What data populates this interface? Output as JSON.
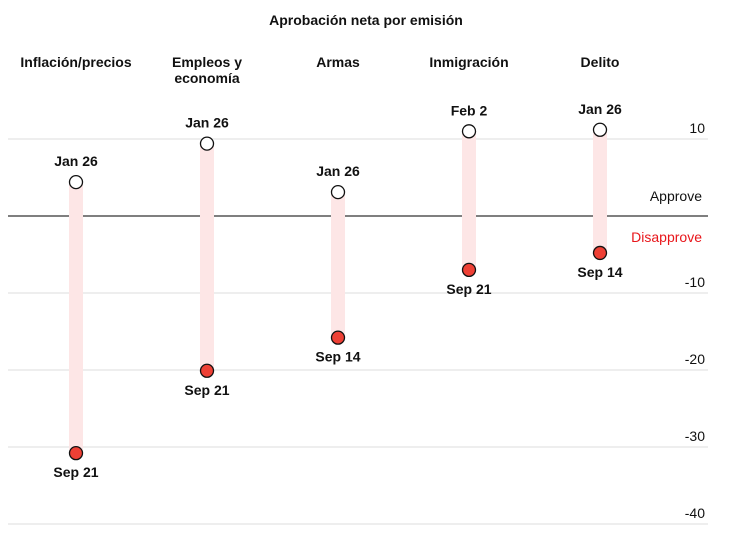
{
  "chart_data": {
    "type": "dumbbell",
    "title": "Aprobación neta por emisión",
    "ylim": [
      -40,
      10
    ],
    "yticks": [
      10,
      -10,
      -20,
      -30,
      -40
    ],
    "zero_labels": {
      "above": "Approve",
      "below": "Disapprove"
    },
    "colors": {
      "start": "#ffffff",
      "end": "#ee4035",
      "bar": "#fde6e6",
      "disapprove_text": "#e8161b"
    },
    "categories": [
      {
        "name": "Inflación/precios",
        "name_lines": [
          "Inflación/precios"
        ],
        "start_label": "Jan 26",
        "start": 4.4,
        "end_label": "Sep 21",
        "end": -30.8
      },
      {
        "name": "Empleos y economía",
        "name_lines": [
          "Empleos y",
          "economía"
        ],
        "start_label": "Jan 26",
        "start": 9.4,
        "end_label": "Sep 21",
        "end": -20.1
      },
      {
        "name": "Armas",
        "name_lines": [
          "Armas"
        ],
        "start_label": "Jan 26",
        "start": 3.1,
        "end_label": "Sep 14",
        "end": -15.8
      },
      {
        "name": "Inmigración",
        "name_lines": [
          "Inmigración"
        ],
        "start_label": "Feb 2",
        "start": 11.0,
        "end_label": "Sep 21",
        "end": -7.0
      },
      {
        "name": "Delito",
        "name_lines": [
          "Delito"
        ],
        "start_label": "Jan 26",
        "start": 11.2,
        "end_label": "Sep 14",
        "end": -4.8
      }
    ]
  }
}
